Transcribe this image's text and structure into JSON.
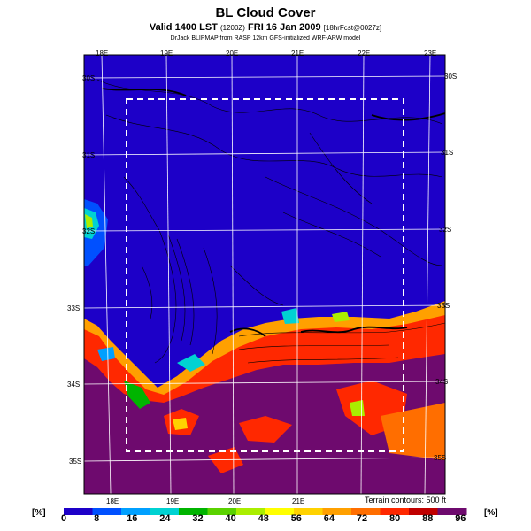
{
  "header": {
    "title": "BL Cloud Cover",
    "subtitle_main": "Valid 1400 LST",
    "subtitle_small1": "(1200Z)",
    "subtitle_date": "FRI 16 Jan 2009",
    "subtitle_small2": "[18hrFcst@0027z]",
    "source": "DrJack BLIPMAP from RASP 12km GFS-initialized WRF-ARW model"
  },
  "axes": {
    "lon_top": [
      "18E",
      "19E",
      "20E",
      "21E",
      "22E",
      "23E"
    ],
    "lon_bottom": [
      "18E",
      "19E",
      "20E",
      "21E"
    ],
    "lat_left": [
      "30S",
      "31S",
      "32S",
      "33S",
      "34S",
      "35S"
    ],
    "lat_right": [
      "30S",
      "31S",
      "32S",
      "33S",
      "34S",
      "35S"
    ]
  },
  "terrain_note": "Terrain contours: 500 ft",
  "colorbar": {
    "unit_left": "[%]",
    "unit_right": "[%]",
    "ticks": [
      "0",
      "8",
      "16",
      "24",
      "32",
      "40",
      "48",
      "56",
      "64",
      "72",
      "80",
      "88",
      "96"
    ],
    "colors": [
      "#1d00c8",
      "#0050ff",
      "#00a0ff",
      "#00d2d2",
      "#00b400",
      "#5ad200",
      "#aaee00",
      "#ffff00",
      "#ffd200",
      "#ffa000",
      "#ff6e00",
      "#ff2800",
      "#c00000",
      "#6e0a6e"
    ]
  }
}
